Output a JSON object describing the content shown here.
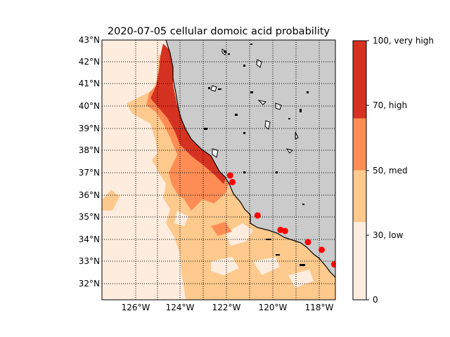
{
  "map": {
    "title": "2020-07-05 cellular domoic acid probability",
    "lat_labels": [
      "43°N",
      "42°N",
      "41°N",
      "40°N",
      "39°N",
      "38°N",
      "37°N",
      "36°N",
      "35°N",
      "34°N",
      "33°N",
      "32°N"
    ],
    "lon_labels": [
      "126°W",
      "124°W",
      "122°W",
      "120°W",
      "118°W"
    ],
    "extent": {
      "lon": [
        -127.5,
        -117.3
      ],
      "lat": [
        31.3,
        43.0
      ]
    },
    "gridlines": "dotted",
    "land_color": "#cbcbcb",
    "coastline_color": "#000000",
    "sample_marker_color": "#ff0000",
    "sample_points": [
      {
        "lon": -121.9,
        "lat": 36.9
      },
      {
        "lon": -121.8,
        "lat": 36.6
      },
      {
        "lon": -120.7,
        "lat": 35.1
      },
      {
        "lon": -119.7,
        "lat": 34.45
      },
      {
        "lon": -119.5,
        "lat": 34.4
      },
      {
        "lon": -118.5,
        "lat": 33.9
      },
      {
        "lon": -117.9,
        "lat": 33.55
      },
      {
        "lon": -117.35,
        "lat": 32.9
      }
    ]
  },
  "colorbar": {
    "ticks": [
      {
        "value": 0,
        "label": "0"
      },
      {
        "value": 30,
        "label": "30, low"
      },
      {
        "value": 50,
        "label": "50, med"
      },
      {
        "value": 70,
        "label": "70, high"
      },
      {
        "value": 100,
        "label": "100, very high"
      }
    ],
    "bands": [
      {
        "from": 0,
        "to": 30,
        "color": "#feedde"
      },
      {
        "from": 30,
        "to": 50,
        "color": "#fdc98d"
      },
      {
        "from": 50,
        "to": 70,
        "color": "#fd8d55"
      },
      {
        "from": 70,
        "to": 100,
        "color": "#d63221"
      }
    ]
  }
}
